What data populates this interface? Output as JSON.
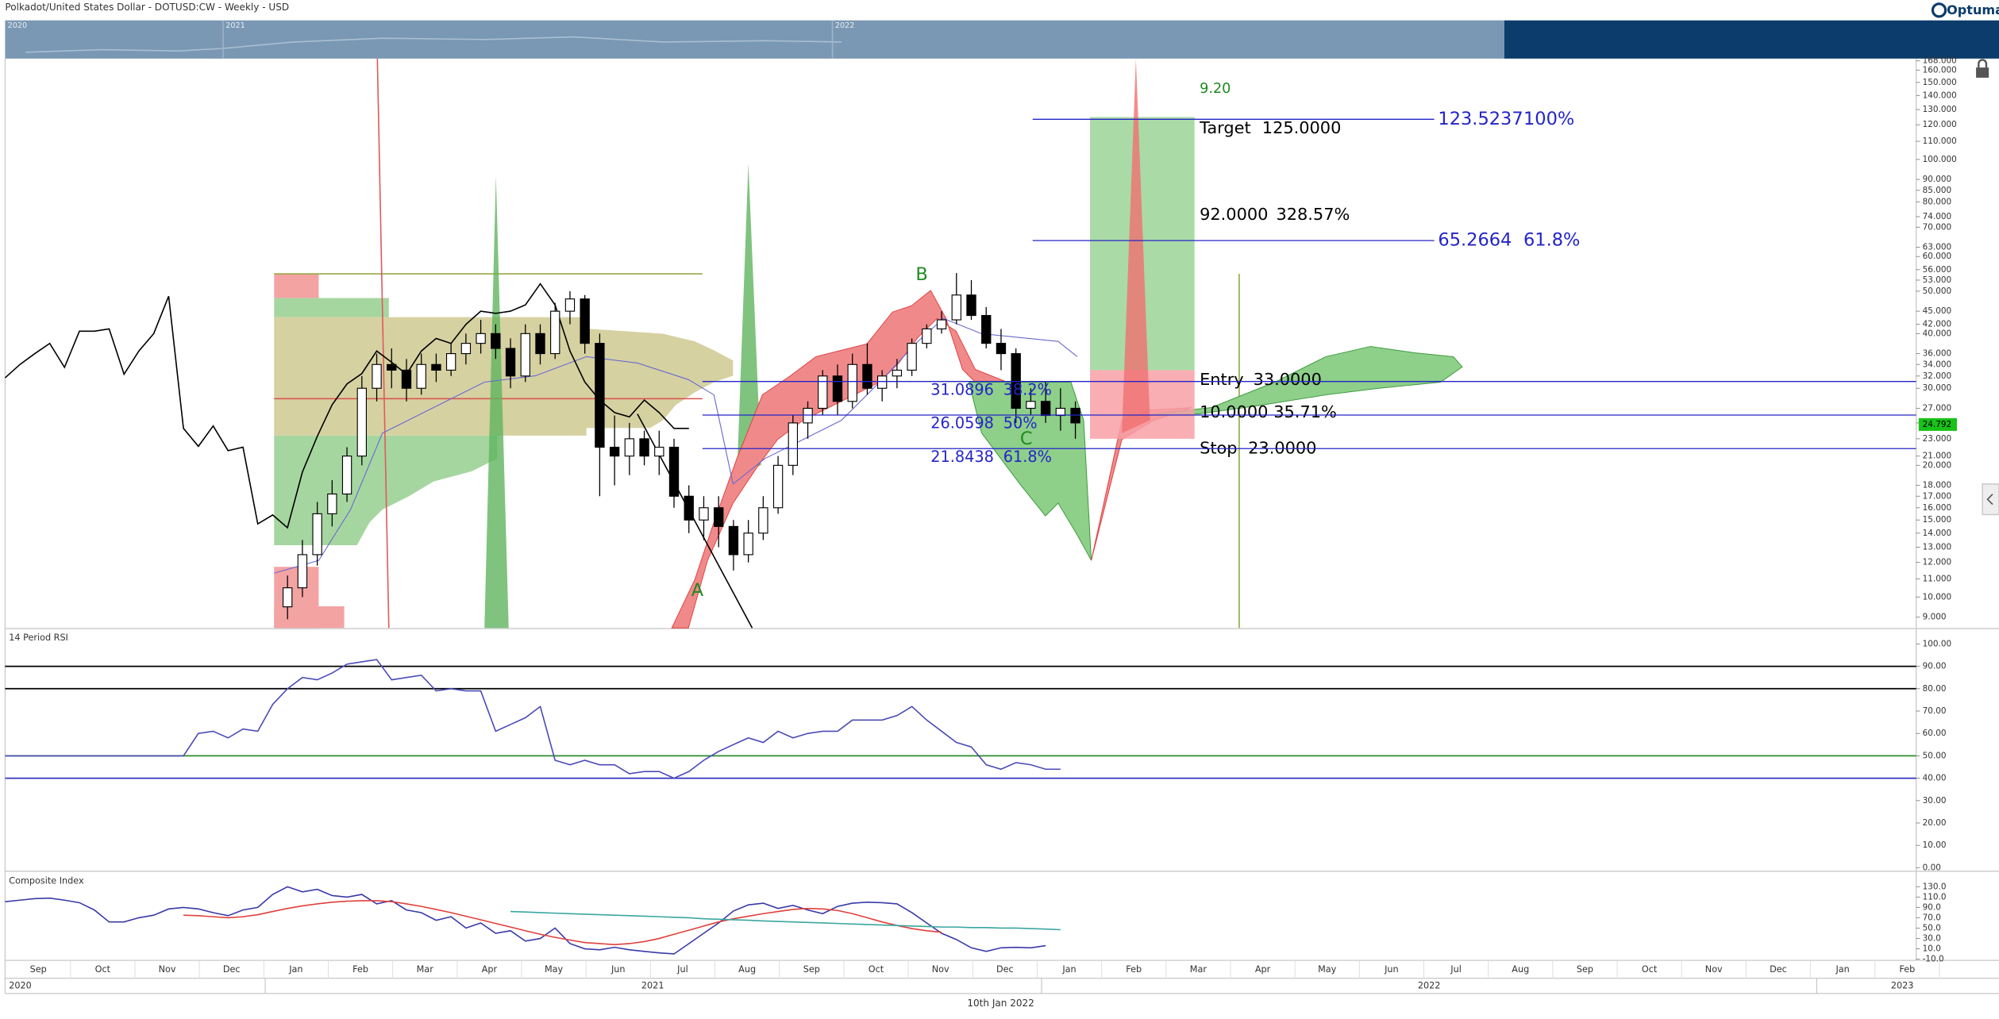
{
  "header": {
    "title": "Polkadot/United States Dollar - DOTUSD:CW - Weekly - USD",
    "brand": "Optuma",
    "navigator_labels": [
      "2020",
      "2021",
      "2022"
    ]
  },
  "chart_data": [
    {
      "type": "candlestick",
      "ylim": [
        8.5,
        170
      ],
      "log": true,
      "yticks": [
        {
          "value": 168,
          "label": "168.000"
        },
        {
          "value": 160,
          "label": "160.000"
        },
        {
          "value": 150,
          "label": "150.000"
        },
        {
          "value": 140,
          "label": "140.000"
        },
        {
          "value": 130,
          "label": "130.000"
        },
        {
          "value": 120,
          "label": "120.000"
        },
        {
          "value": 110,
          "label": "110.000"
        },
        {
          "value": 100,
          "label": "100.000"
        },
        {
          "value": 90,
          "label": "90.000"
        },
        {
          "value": 85,
          "label": "85.000"
        },
        {
          "value": 80,
          "label": "80.000"
        },
        {
          "value": 74,
          "label": "74.000"
        },
        {
          "value": 70,
          "label": "70.000"
        },
        {
          "value": 63,
          "label": "63.000"
        },
        {
          "value": 60,
          "label": "60.000"
        },
        {
          "value": 56,
          "label": "56.000"
        },
        {
          "value": 53,
          "label": "53.000"
        },
        {
          "value": 50,
          "label": "50.000"
        },
        {
          "value": 45,
          "label": "45.000"
        },
        {
          "value": 42,
          "label": "42.000"
        },
        {
          "value": 40,
          "label": "40.000"
        },
        {
          "value": 36,
          "label": "36.000"
        },
        {
          "value": 34,
          "label": "34.000"
        },
        {
          "value": 32,
          "label": "32.000"
        },
        {
          "value": 30,
          "label": "30.000"
        },
        {
          "value": 27,
          "label": "27.000"
        },
        {
          "value": 25,
          "label": "25.000"
        },
        {
          "value": 23,
          "label": "23.000"
        },
        {
          "value": 21,
          "label": "21.000"
        },
        {
          "value": 20,
          "label": "20.000"
        },
        {
          "value": 18,
          "label": "18.000"
        },
        {
          "value": 17,
          "label": "17.000"
        },
        {
          "value": 16,
          "label": "16.000"
        },
        {
          "value": 15,
          "label": "15.000"
        },
        {
          "value": 14,
          "label": "14.000"
        },
        {
          "value": 13,
          "label": "13.000"
        },
        {
          "value": 12,
          "label": "12.000"
        },
        {
          "value": 11,
          "label": "11.000"
        },
        {
          "value": 10,
          "label": "10.000"
        },
        {
          "value": 9,
          "label": "9.000"
        }
      ],
      "up_color": "#ffffff",
      "down_color": "#000000",
      "candles": [
        [
          9.5,
          11.2,
          8.9,
          10.5
        ],
        [
          10.5,
          13.5,
          10,
          12.5
        ],
        [
          12.5,
          16.5,
          11.8,
          15.5
        ],
        [
          15.5,
          18.5,
          14.5,
          17.2
        ],
        [
          17.2,
          22,
          16.5,
          21
        ],
        [
          21,
          32,
          20,
          30
        ],
        [
          30,
          36,
          28,
          34
        ],
        [
          34,
          37,
          30,
          33
        ],
        [
          33,
          35,
          28,
          30
        ],
        [
          30,
          36,
          29,
          34
        ],
        [
          34,
          36,
          31,
          33
        ],
        [
          33,
          38,
          32,
          36
        ],
        [
          36,
          40,
          34,
          38
        ],
        [
          38,
          43,
          36,
          40
        ],
        [
          40,
          42,
          35,
          37
        ],
        [
          37,
          39,
          30,
          32
        ],
        [
          32,
          42,
          31,
          40
        ],
        [
          40,
          42,
          34,
          36
        ],
        [
          36,
          47,
          35,
          45
        ],
        [
          45,
          50,
          42,
          48
        ],
        [
          48,
          49,
          36,
          38
        ],
        [
          38,
          40,
          17,
          22
        ],
        [
          22,
          26,
          18,
          21
        ],
        [
          21,
          25,
          19,
          23
        ],
        [
          23,
          24,
          20,
          21
        ],
        [
          21,
          24,
          19,
          22
        ],
        [
          22,
          23,
          16,
          17
        ],
        [
          17,
          18,
          14,
          15
        ],
        [
          15,
          17,
          13.5,
          16
        ],
        [
          16,
          17,
          13,
          14.5
        ],
        [
          14.5,
          15,
          11.5,
          12.5
        ],
        [
          12.5,
          15,
          12,
          14
        ],
        [
          14,
          17,
          13.5,
          16
        ],
        [
          16,
          21,
          15.5,
          20
        ],
        [
          20,
          26,
          19,
          25
        ],
        [
          25,
          28,
          23,
          27
        ],
        [
          27,
          33,
          26,
          32
        ],
        [
          32,
          34,
          26,
          28
        ],
        [
          28,
          36,
          27,
          34
        ],
        [
          34,
          38,
          29,
          30
        ],
        [
          30,
          33,
          28,
          32
        ],
        [
          32,
          35,
          30,
          33
        ],
        [
          33,
          39,
          32,
          38
        ],
        [
          38,
          42,
          37,
          41
        ],
        [
          41,
          45,
          40,
          43
        ],
        [
          43,
          55,
          42,
          49
        ],
        [
          49,
          53,
          43,
          44
        ],
        [
          44,
          46,
          37,
          38
        ],
        [
          38,
          41,
          33,
          36
        ],
        [
          36,
          37,
          25,
          27
        ],
        [
          27,
          30,
          26,
          28
        ],
        [
          28,
          31,
          25,
          26
        ],
        [
          26,
          30,
          24,
          27
        ],
        [
          27,
          28,
          23,
          25
        ]
      ],
      "series": [
        {
          "color": "#000000",
          "values": [
            31.7,
            34,
            36,
            38,
            33.5,
            40.5,
            40.5,
            41,
            32.3,
            36.5,
            40,
            48.7,
            24.3,
            22.1,
            24.6,
            21.6,
            22,
            14.7,
            15.4,
            14.4,
            19.3,
            23.3,
            27.5,
            30.7,
            32.4,
            36.5,
            34.4,
            32.3,
            36.5,
            39,
            38,
            42,
            45,
            44.5,
            45,
            46.5,
            52,
            46.5,
            36.5,
            31,
            28.2,
            26.4,
            25.8,
            28.2,
            26.4,
            24.3,
            24.3
          ]
        }
      ],
      "last_price": 24.792,
      "last_price_color": "#19c219",
      "fib_color": "#2424c8",
      "fib_levels": [
        {
          "value": 123.5237,
          "percent": "100%"
        },
        {
          "value": 65.2664,
          "percent": "61.8%"
        },
        {
          "value": 31.0896,
          "percent": "38.2%"
        },
        {
          "value": 26.0598,
          "percent": "50%"
        },
        {
          "value": 21.8438,
          "percent": "61.8%"
        }
      ],
      "trade": {
        "target": {
          "label": "Target",
          "price": {
            "value": 125,
            "label": "125.0000"
          }
        },
        "entry": {
          "label": "Entry",
          "price": {
            "value": 33,
            "label": "33.0000"
          }
        },
        "stop": {
          "label": "Stop",
          "price": {
            "value": 23,
            "label": "23.0000"
          }
        },
        "reward": "92.0000",
        "reward_pct": "328.57%",
        "risk": "10.0000",
        "risk_pct": "35.71%",
        "ratio": "9.20",
        "reward_color": "#8ecf8a",
        "risk_color": "#f7a0a6"
      },
      "wave_labels": [
        "A",
        "B",
        "C"
      ],
      "wave_color": "#1f8a1f"
    },
    {
      "type": "line",
      "title": "14 Period RSI",
      "ylim": [
        -1,
        106
      ],
      "yticks": [
        {
          "value": 100,
          "label": "100.00"
        },
        {
          "value": 90,
          "label": "90.00"
        },
        {
          "value": 80,
          "label": "80.00"
        },
        {
          "value": 70,
          "label": "70.00"
        },
        {
          "value": 60,
          "label": "60.00"
        },
        {
          "value": 50,
          "label": "50.00"
        },
        {
          "value": 40,
          "label": "40.00"
        },
        {
          "value": 30,
          "label": "30.00"
        },
        {
          "value": 20,
          "label": "20.00"
        },
        {
          "value": 10,
          "label": "10.00"
        },
        {
          "value": 0,
          "label": "0.00"
        }
      ],
      "levels": [
        {
          "value": 90,
          "color": "#000000"
        },
        {
          "value": 80,
          "color": "#000000"
        },
        {
          "value": 50,
          "color": "#2e8b2e"
        },
        {
          "value": 40,
          "color": "#3434c0"
        }
      ],
      "series": [
        {
          "color": "#4b4bb8",
          "values": [
            50,
            50,
            50,
            50,
            50,
            50,
            50,
            50,
            50,
            50,
            50,
            50,
            50,
            60,
            61,
            58,
            62,
            61,
            73,
            80,
            85,
            84,
            87,
            91,
            92,
            93,
            84,
            85,
            86,
            79,
            80,
            79,
            79,
            61,
            64,
            67,
            72,
            48,
            46,
            48,
            46,
            46,
            42,
            43,
            43,
            40,
            43,
            48,
            52,
            55,
            58,
            56,
            61,
            58,
            60,
            61,
            61,
            66,
            66,
            66,
            68,
            72,
            66,
            61,
            56,
            54,
            46,
            44,
            47,
            46,
            44,
            44
          ]
        }
      ]
    },
    {
      "type": "line",
      "title": "Composite Index",
      "ylim": [
        -10,
        155
      ],
      "yticks": [
        {
          "value": 130,
          "label": "130.0"
        },
        {
          "value": 110,
          "label": "110.0"
        },
        {
          "value": 90,
          "label": "90.0"
        },
        {
          "value": 70,
          "label": "70.0"
        },
        {
          "value": 50,
          "label": "50.0"
        },
        {
          "value": 30,
          "label": "30.0"
        },
        {
          "value": 10,
          "label": "10.0"
        },
        {
          "value": -10,
          "label": "-10.0"
        }
      ],
      "series": [
        {
          "color": "#3a3aa8",
          "values": [
            101,
            104,
            107,
            108,
            104,
            99,
            85,
            62,
            62,
            70,
            75,
            87,
            90,
            87,
            80,
            74,
            85,
            90,
            115,
            130,
            120,
            125,
            113,
            110,
            115,
            97,
            103,
            85,
            80,
            65,
            72,
            50,
            60,
            40,
            45,
            25,
            30,
            50,
            20,
            10,
            8,
            13,
            8,
            5,
            2,
            0,
            20,
            40,
            60,
            83,
            95,
            98,
            88,
            94,
            85,
            78,
            92,
            98,
            100,
            99,
            97,
            80,
            60,
            40,
            28,
            12,
            5,
            12,
            13,
            12,
            16
          ]
        },
        {
          "color": "#e0403c",
          "values": [
            null,
            null,
            null,
            null,
            null,
            null,
            null,
            null,
            null,
            null,
            null,
            null,
            75,
            74,
            72,
            70,
            72,
            76,
            82,
            88,
            93,
            97,
            100,
            102,
            103,
            103,
            101,
            97,
            92,
            86,
            80,
            73,
            66,
            59,
            52,
            45,
            38,
            32,
            27,
            22,
            20,
            18,
            20,
            24,
            30,
            38,
            46,
            54,
            62,
            68,
            73,
            78,
            82,
            86,
            88,
            87,
            84,
            78,
            70,
            62,
            55,
            49,
            45,
            42
          ]
        },
        {
          "color": "#3aa6a0",
          "values": [
            null,
            null,
            null,
            null,
            null,
            null,
            null,
            null,
            null,
            null,
            null,
            null,
            null,
            null,
            null,
            null,
            null,
            null,
            null,
            null,
            null,
            null,
            null,
            null,
            null,
            null,
            null,
            null,
            null,
            null,
            null,
            null,
            null,
            null,
            82,
            81,
            80,
            79,
            78,
            77,
            76,
            75,
            74,
            73,
            72,
            71,
            70,
            68,
            67,
            66,
            65,
            64,
            63,
            62,
            61,
            60,
            59,
            58,
            57,
            56,
            55,
            54,
            53,
            52,
            52,
            51,
            51,
            50,
            50,
            49,
            48,
            47
          ]
        }
      ]
    }
  ],
  "time_axis": {
    "months": [
      "Sep",
      "Oct",
      "Nov",
      "Dec",
      "Jan",
      "Feb",
      "Mar",
      "Apr",
      "May",
      "Jun",
      "Jul",
      "Aug",
      "Sep",
      "Oct",
      "Nov",
      "Dec",
      "Jan",
      "Feb",
      "Mar",
      "Apr",
      "May",
      "Jun",
      "Jul",
      "Aug",
      "Sep",
      "Oct",
      "Nov",
      "Dec",
      "Jan",
      "Feb"
    ],
    "years": [
      "2020",
      "2021",
      "2022",
      "2023"
    ],
    "cursor": "10th Jan 2022"
  }
}
